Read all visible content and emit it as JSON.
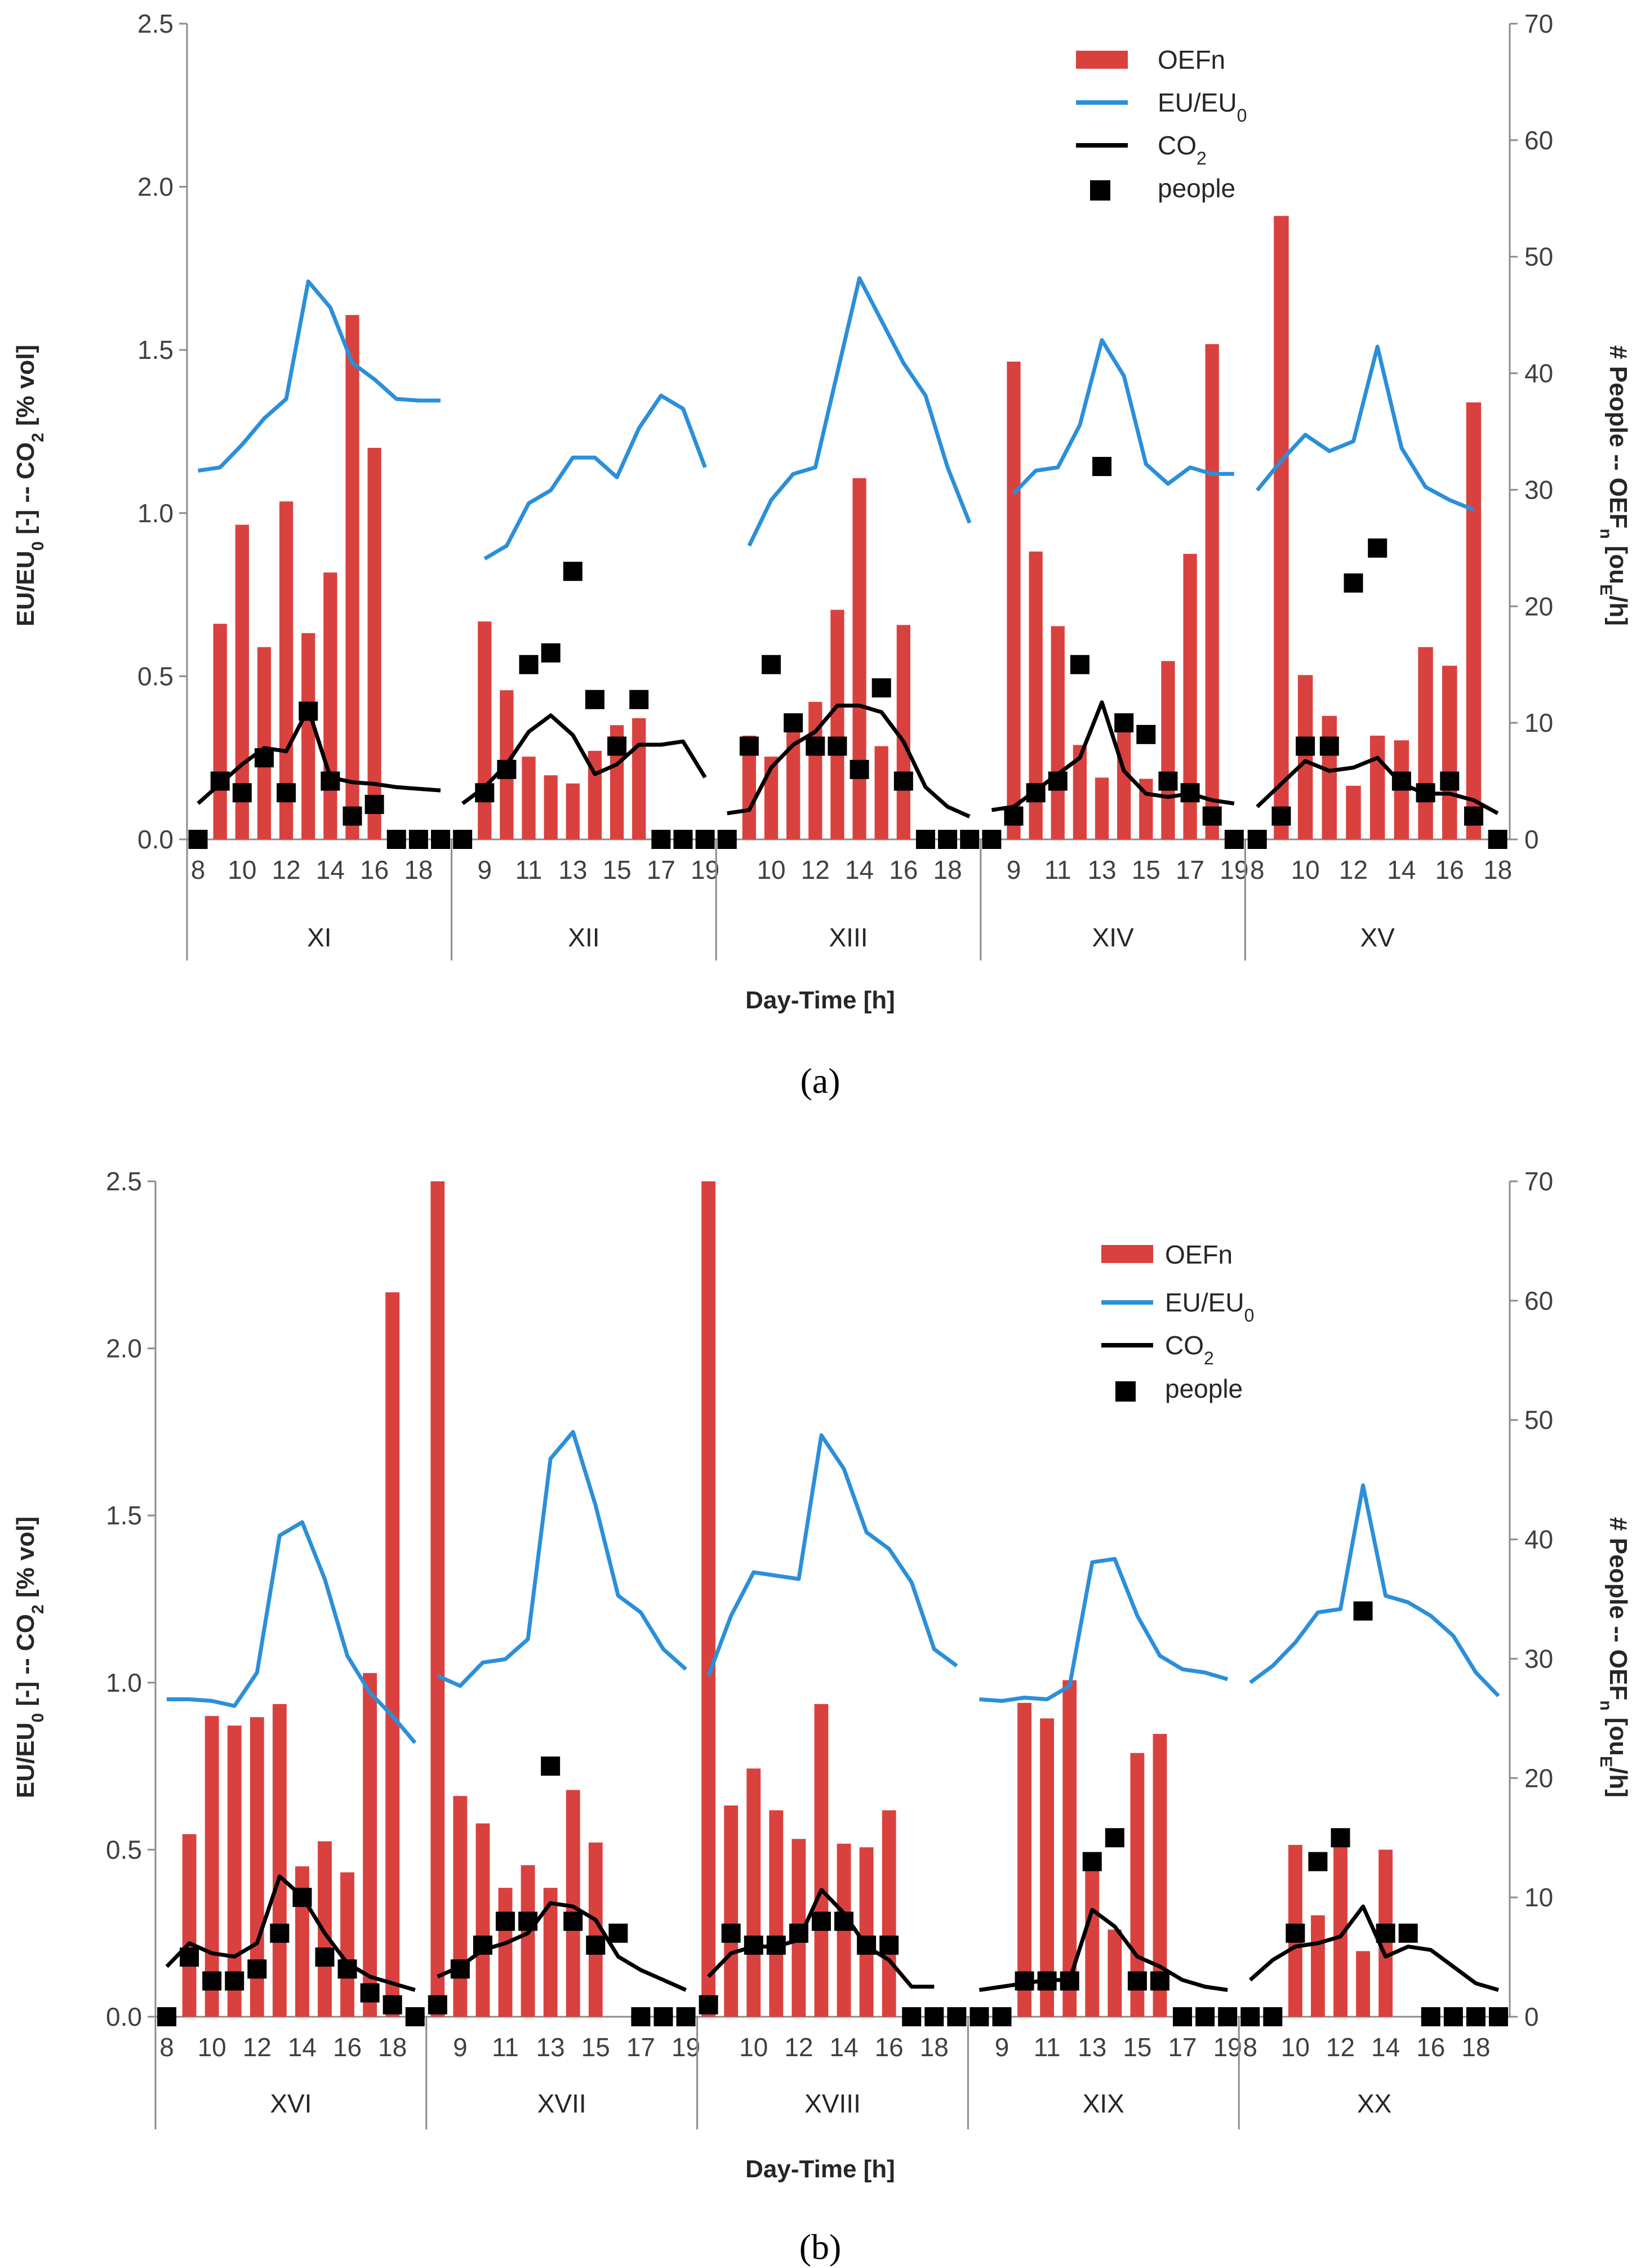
{
  "colors": {
    "bar": "#D9413F",
    "eu": "#2B8FD9",
    "co2": "#000000",
    "people": "#000000",
    "axis": "#8C8C8C",
    "text": "#262626"
  },
  "legend": {
    "bar": "OEFn",
    "eu_pre": "EU/EU",
    "eu_sub": "0",
    "co2_pre": "CO",
    "co2_sub": "2",
    "people": "people"
  },
  "labels": {
    "ylabel_left": [
      "EU/EU",
      "0",
      " [-] -- CO",
      "2",
      " [% vol]"
    ],
    "ylabel_right": [
      "# People -- OEF",
      "n",
      " [ou",
      "E",
      "/h]"
    ],
    "xlabel": "Day-Time [h]",
    "yticks_left": [
      "0.0",
      "0.5",
      "1.0",
      "1.5",
      "2.0",
      "2.5"
    ],
    "yticks_right": [
      "0",
      "10",
      "20",
      "30",
      "40",
      "50",
      "60",
      "70"
    ],
    "panel_a": "(a)",
    "panel_b": "(b)"
  },
  "chart_data": [
    {
      "type": "bar",
      "panel": "(a)",
      "xlabel": "Day-Time [h]",
      "ylabel": "EU/EU0 [-] -- CO2 [% vol]",
      "y2label": "# People -- OEFn [ouE/h]",
      "ylim": [
        0,
        2.5
      ],
      "y2lim": [
        0,
        70
      ],
      "groups": [
        {
          "name": "XI",
          "hours": [
            8,
            9,
            10,
            11,
            12,
            13,
            14,
            15,
            16,
            17,
            18,
            19
          ],
          "tick_labels": [
            "8",
            "10",
            "12",
            "14",
            "16",
            "18"
          ],
          "tick_hours": [
            8,
            10,
            12,
            14,
            16,
            18
          ],
          "oefn": [
            0,
            18.5,
            27,
            16.5,
            29,
            17.7,
            22.9,
            45,
            33.6,
            0,
            0,
            0
          ],
          "eu": [
            1.13,
            1.14,
            1.21,
            1.29,
            1.35,
            1.71,
            1.63,
            1.46,
            1.41,
            1.35,
            1.345,
            1.345
          ],
          "co2": [
            0.11,
            0.17,
            0.23,
            0.28,
            0.27,
            0.4,
            0.19,
            0.175,
            0.17,
            0.16,
            0.155,
            0.15
          ],
          "people": [
            0,
            5,
            4,
            7,
            4,
            11,
            5,
            2,
            3,
            0,
            0,
            0
          ]
        },
        {
          "name": "XII",
          "hours": [
            8,
            9,
            10,
            11,
            12,
            13,
            14,
            15,
            16,
            17,
            18,
            19
          ],
          "tick_labels": [
            "9",
            "11",
            "13",
            "15",
            "17",
            "19"
          ],
          "tick_hours": [
            9,
            11,
            13,
            15,
            17,
            19
          ],
          "oefn": [
            0,
            18.7,
            12.8,
            7.1,
            5.5,
            4.8,
            7.6,
            9.8,
            10.4,
            0,
            0,
            0
          ],
          "eu": [
            null,
            0.86,
            0.9,
            1.03,
            1.07,
            1.17,
            1.17,
            1.11,
            1.26,
            1.36,
            1.32,
            1.14
          ],
          "co2": [
            0.11,
            0.16,
            0.23,
            0.33,
            0.38,
            0.32,
            0.2,
            0.23,
            0.29,
            0.29,
            0.3,
            0.19
          ],
          "people": [
            0,
            4,
            6,
            15,
            16,
            23,
            12,
            8,
            12,
            0,
            0,
            0
          ]
        },
        {
          "name": "XIII",
          "hours": [
            8,
            9,
            10,
            11,
            12,
            13,
            14,
            15,
            16,
            17,
            18,
            19
          ],
          "tick_labels": [
            "10",
            "12",
            "14",
            "16",
            "18"
          ],
          "tick_hours": [
            10,
            12,
            14,
            16,
            18
          ],
          "oefn": [
            0,
            8.9,
            7.1,
            9.6,
            11.8,
            19.7,
            31,
            8,
            18.4,
            0,
            0,
            0
          ],
          "eu": [
            null,
            0.9,
            1.04,
            1.12,
            1.14,
            1.43,
            1.72,
            1.59,
            1.46,
            1.36,
            1.14,
            0.97
          ],
          "co2": [
            0.08,
            0.09,
            0.22,
            0.29,
            0.33,
            0.41,
            0.41,
            0.39,
            0.3,
            0.16,
            0.1,
            0.07
          ],
          "people": [
            0,
            8,
            15,
            10,
            8,
            8,
            6,
            13,
            5,
            0,
            0,
            0
          ]
        },
        {
          "name": "XIV",
          "hours": [
            8,
            9,
            10,
            11,
            12,
            13,
            14,
            15,
            16,
            17,
            18,
            19
          ],
          "tick_labels": [
            "9",
            "11",
            "13",
            "15",
            "17",
            "19"
          ],
          "tick_hours": [
            9,
            11,
            13,
            15,
            17,
            19
          ],
          "oefn": [
            0,
            41,
            24.7,
            18.3,
            8.1,
            5.3,
            10,
            5.2,
            15.3,
            24.5,
            42.5,
            0
          ],
          "eu": [
            null,
            1.06,
            1.13,
            1.14,
            1.27,
            1.53,
            1.42,
            1.15,
            1.09,
            1.14,
            1.12,
            1.12
          ],
          "co2": [
            0.09,
            0.1,
            0.15,
            0.2,
            0.25,
            0.42,
            0.21,
            0.14,
            0.13,
            0.14,
            0.12,
            0.11
          ],
          "people": [
            0,
            2,
            4,
            5,
            15,
            32,
            10,
            9,
            5,
            4,
            2,
            0
          ]
        },
        {
          "name": "XV",
          "hours": [
            8,
            9,
            10,
            11,
            12,
            13,
            14,
            15,
            16,
            17,
            18
          ],
          "tick_labels": [
            "8",
            "10",
            "12",
            "14",
            "16",
            "18"
          ],
          "tick_hours": [
            8,
            10,
            12,
            14,
            16,
            18
          ],
          "oefn": [
            0,
            53.5,
            14.1,
            10.6,
            4.6,
            8.9,
            8.5,
            16.5,
            14.9,
            37.5,
            0
          ],
          "eu": [
            1.07,
            1.16,
            1.24,
            1.19,
            1.22,
            1.51,
            1.2,
            1.08,
            1.04,
            1.01,
            null
          ],
          "co2": [
            0.1,
            0.17,
            0.24,
            0.21,
            0.22,
            0.25,
            0.17,
            0.14,
            0.14,
            0.12,
            0.08
          ],
          "people": [
            0,
            2,
            8,
            8,
            22,
            25,
            5,
            4,
            5,
            2,
            0
          ]
        }
      ]
    },
    {
      "type": "bar",
      "panel": "(b)",
      "xlabel": "Day-Time [h]",
      "ylabel": "EU/EU0 [-] -- CO2 [% vol]",
      "y2label": "# People -- OEFn [ouE/h]",
      "ylim": [
        0,
        2.5
      ],
      "y2lim": [
        0,
        70
      ],
      "groups": [
        {
          "name": "XVI",
          "hours": [
            8,
            9,
            10,
            11,
            12,
            13,
            14,
            15,
            16,
            17,
            18,
            19
          ],
          "tick_labels": [
            "8",
            "10",
            "12",
            "14",
            "16",
            "18"
          ],
          "tick_hours": [
            8,
            10,
            12,
            14,
            16,
            18
          ],
          "oefn": [
            0,
            15.3,
            25.2,
            24.4,
            25.1,
            26.2,
            12.6,
            14.7,
            12.1,
            28.8,
            60.7,
            0
          ],
          "eu": [
            0.95,
            0.95,
            0.945,
            0.93,
            1.03,
            1.44,
            1.48,
            1.31,
            1.08,
            0.97,
            0.9,
            0.82
          ],
          "co2": [
            0.15,
            0.22,
            0.19,
            0.18,
            0.22,
            0.42,
            0.36,
            0.25,
            0.16,
            0.12,
            0.1,
            0.08
          ],
          "people": [
            0,
            5,
            3,
            3,
            4,
            7,
            10,
            5,
            4,
            2,
            1,
            0
          ]
        },
        {
          "name": "XVII",
          "hours": [
            8,
            9,
            10,
            11,
            12,
            13,
            14,
            15,
            16,
            17,
            18,
            19
          ],
          "tick_labels": [
            "9",
            "11",
            "13",
            "15",
            "17",
            "19"
          ],
          "tick_hours": [
            9,
            11,
            13,
            15,
            17,
            19
          ],
          "oefn": [
            70,
            18.5,
            16.2,
            10.8,
            12.7,
            10.8,
            19,
            14.6,
            0,
            0,
            0,
            0
          ],
          "eu": [
            1.02,
            0.99,
            1.06,
            1.07,
            1.13,
            1.67,
            1.75,
            1.53,
            1.26,
            1.21,
            1.1,
            1.04
          ],
          "co2": [
            0.12,
            0.15,
            0.2,
            0.22,
            0.25,
            0.34,
            0.33,
            0.29,
            0.18,
            0.14,
            0.11,
            0.08
          ],
          "people": [
            1,
            4,
            6,
            8,
            8,
            21,
            8,
            6,
            7,
            0,
            0,
            0
          ]
        },
        {
          "name": "XVIII",
          "hours": [
            8,
            9,
            10,
            11,
            12,
            13,
            14,
            15,
            16,
            17,
            18,
            19
          ],
          "tick_labels": [
            "10",
            "12",
            "14",
            "16",
            "18"
          ],
          "tick_hours": [
            10,
            12,
            14,
            16,
            18
          ],
          "oefn": [
            70,
            17.7,
            20.8,
            17.3,
            14.9,
            26.2,
            14.5,
            14.2,
            17.3,
            0,
            0,
            0
          ],
          "eu": [
            1.02,
            1.2,
            1.33,
            1.32,
            1.31,
            1.74,
            1.64,
            1.45,
            1.4,
            1.3,
            1.1,
            1.05
          ],
          "co2": [
            0.12,
            0.19,
            0.21,
            0.21,
            0.23,
            0.38,
            0.31,
            0.21,
            0.17,
            0.09,
            0.09,
            null
          ],
          "people": [
            1,
            7,
            6,
            6,
            7,
            8,
            8,
            6,
            6,
            0,
            0,
            0
          ]
        },
        {
          "name": "XIX",
          "hours": [
            8,
            9,
            10,
            11,
            12,
            13,
            14,
            15,
            16,
            17,
            18,
            19
          ],
          "tick_labels": [
            "9",
            "11",
            "13",
            "15",
            "17",
            "19"
          ],
          "tick_hours": [
            9,
            11,
            13,
            15,
            17,
            19
          ],
          "oefn": [
            0,
            0,
            26.3,
            25,
            28.2,
            13.5,
            7.3,
            22.1,
            23.7,
            0,
            0,
            0
          ],
          "eu": [
            0.95,
            0.945,
            0.955,
            0.95,
            0.99,
            1.36,
            1.37,
            1.2,
            1.08,
            1.04,
            1.03,
            1.01
          ],
          "co2": [
            0.08,
            0.09,
            0.1,
            0.11,
            0.11,
            0.32,
            0.27,
            0.18,
            0.15,
            0.11,
            0.09,
            0.08
          ],
          "people": [
            0,
            0,
            3,
            3,
            3,
            13,
            15,
            3,
            3,
            0,
            0,
            0
          ]
        },
        {
          "name": "XX",
          "hours": [
            8,
            9,
            10,
            11,
            12,
            13,
            14,
            15,
            16,
            17,
            18,
            19
          ],
          "tick_labels": [
            "8",
            "10",
            "12",
            "14",
            "16",
            "18"
          ],
          "tick_hours": [
            8,
            10,
            12,
            14,
            16,
            18
          ],
          "oefn": [
            0,
            0,
            14.4,
            8.5,
            15.1,
            5.5,
            14,
            0,
            0,
            0,
            0,
            0
          ],
          "eu": [
            1.0,
            1.05,
            1.12,
            1.21,
            1.22,
            1.59,
            1.26,
            1.24,
            1.2,
            1.14,
            1.03,
            0.96
          ],
          "co2": [
            0.11,
            0.17,
            0.21,
            0.22,
            0.24,
            0.33,
            0.18,
            0.21,
            0.2,
            0.15,
            0.1,
            0.08
          ],
          "people": [
            0,
            0,
            7,
            13,
            15,
            34,
            7,
            7,
            0,
            0,
            0,
            0
          ]
        }
      ]
    }
  ]
}
